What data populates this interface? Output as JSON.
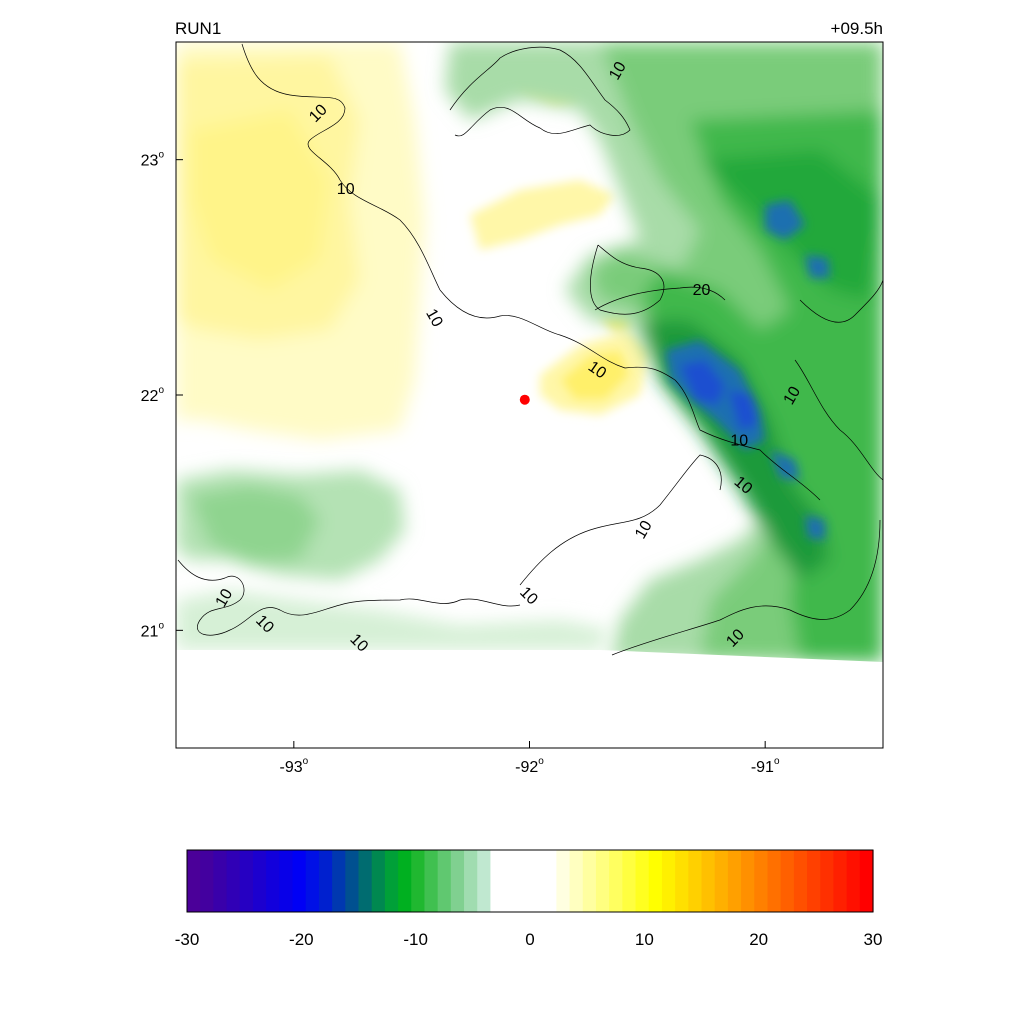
{
  "header": {
    "run_label": "RUN1",
    "time_label": "+09.5h"
  },
  "axes": {
    "x_ticks": [
      {
        "lon": -93,
        "label": "-93"
      },
      {
        "lon": -92,
        "label": "-92"
      },
      {
        "lon": -91,
        "label": "-91"
      }
    ],
    "y_ticks": [
      {
        "lat": 23,
        "label": "23"
      },
      {
        "lat": 22,
        "label": "22"
      },
      {
        "lat": 21,
        "label": "21"
      }
    ],
    "degree_mark": "o",
    "lon_range": [
      -93.5,
      -90.5
    ],
    "lat_range": [
      20.5,
      23.5
    ]
  },
  "marker": {
    "lon": -92.02,
    "lat": 21.98,
    "color": "#ff0000"
  },
  "contours": {
    "labels": [
      {
        "text": "10",
        "lon": -92.9,
        "lat": 23.2,
        "angle": -45
      },
      {
        "text": "10",
        "lon": -92.78,
        "lat": 22.88,
        "angle": 0
      },
      {
        "text": "10",
        "lon": -91.63,
        "lat": 23.38,
        "angle": -60
      },
      {
        "text": "10",
        "lon": -92.4,
        "lat": 22.33,
        "angle": 60
      },
      {
        "text": "20",
        "lon": -91.27,
        "lat": 22.45,
        "angle": 0
      },
      {
        "text": "10",
        "lon": -91.71,
        "lat": 22.11,
        "angle": 35
      },
      {
        "text": "10",
        "lon": -90.89,
        "lat": 22.0,
        "angle": -60
      },
      {
        "text": "10",
        "lon": -91.11,
        "lat": 21.81,
        "angle": 0
      },
      {
        "text": "10",
        "lon": -91.09,
        "lat": 21.62,
        "angle": 40
      },
      {
        "text": "10",
        "lon": -91.52,
        "lat": 21.43,
        "angle": -60
      },
      {
        "text": "10",
        "lon": -92.0,
        "lat": 21.15,
        "angle": 45
      },
      {
        "text": "10",
        "lon": -93.3,
        "lat": 21.14,
        "angle": -60
      },
      {
        "text": "10",
        "lon": -93.12,
        "lat": 21.03,
        "angle": 45
      },
      {
        "text": "10",
        "lon": -92.72,
        "lat": 20.95,
        "angle": 45
      },
      {
        "text": "10",
        "lon": -91.13,
        "lat": 20.97,
        "angle": -45
      }
    ]
  },
  "colorbar": {
    "ticks": [
      "-30",
      "-20",
      "-10",
      "0",
      "10",
      "20",
      "30"
    ],
    "min": -30,
    "max": 30,
    "colors": [
      "#4b0099",
      "#43009f",
      "#3900aa",
      "#3000b6",
      "#2600c2",
      "#1c00cf",
      "#1200dc",
      "#0800e8",
      "#0000f5",
      "#0010e6",
      "#0020cf",
      "#0038b0",
      "#005090",
      "#006c70",
      "#008850",
      "#00a038",
      "#00b020",
      "#20b830",
      "#40c050",
      "#60c870",
      "#80d090",
      "#a0dcb0",
      "#c0e8d0",
      "#ffffff",
      "#ffffff",
      "#ffffff",
      "#ffffff",
      "#ffffff",
      "#ffffe0",
      "#ffffc0",
      "#ffffa0",
      "#ffff80",
      "#ffff60",
      "#ffff40",
      "#ffff20",
      "#ffff00",
      "#fff000",
      "#ffe000",
      "#ffd000",
      "#ffc000",
      "#ffb000",
      "#ffa000",
      "#ff9000",
      "#ff8000",
      "#ff7000",
      "#ff6000",
      "#ff5000",
      "#ff4000",
      "#ff3000",
      "#ff2000",
      "#ff1000",
      "#ff0000"
    ]
  }
}
